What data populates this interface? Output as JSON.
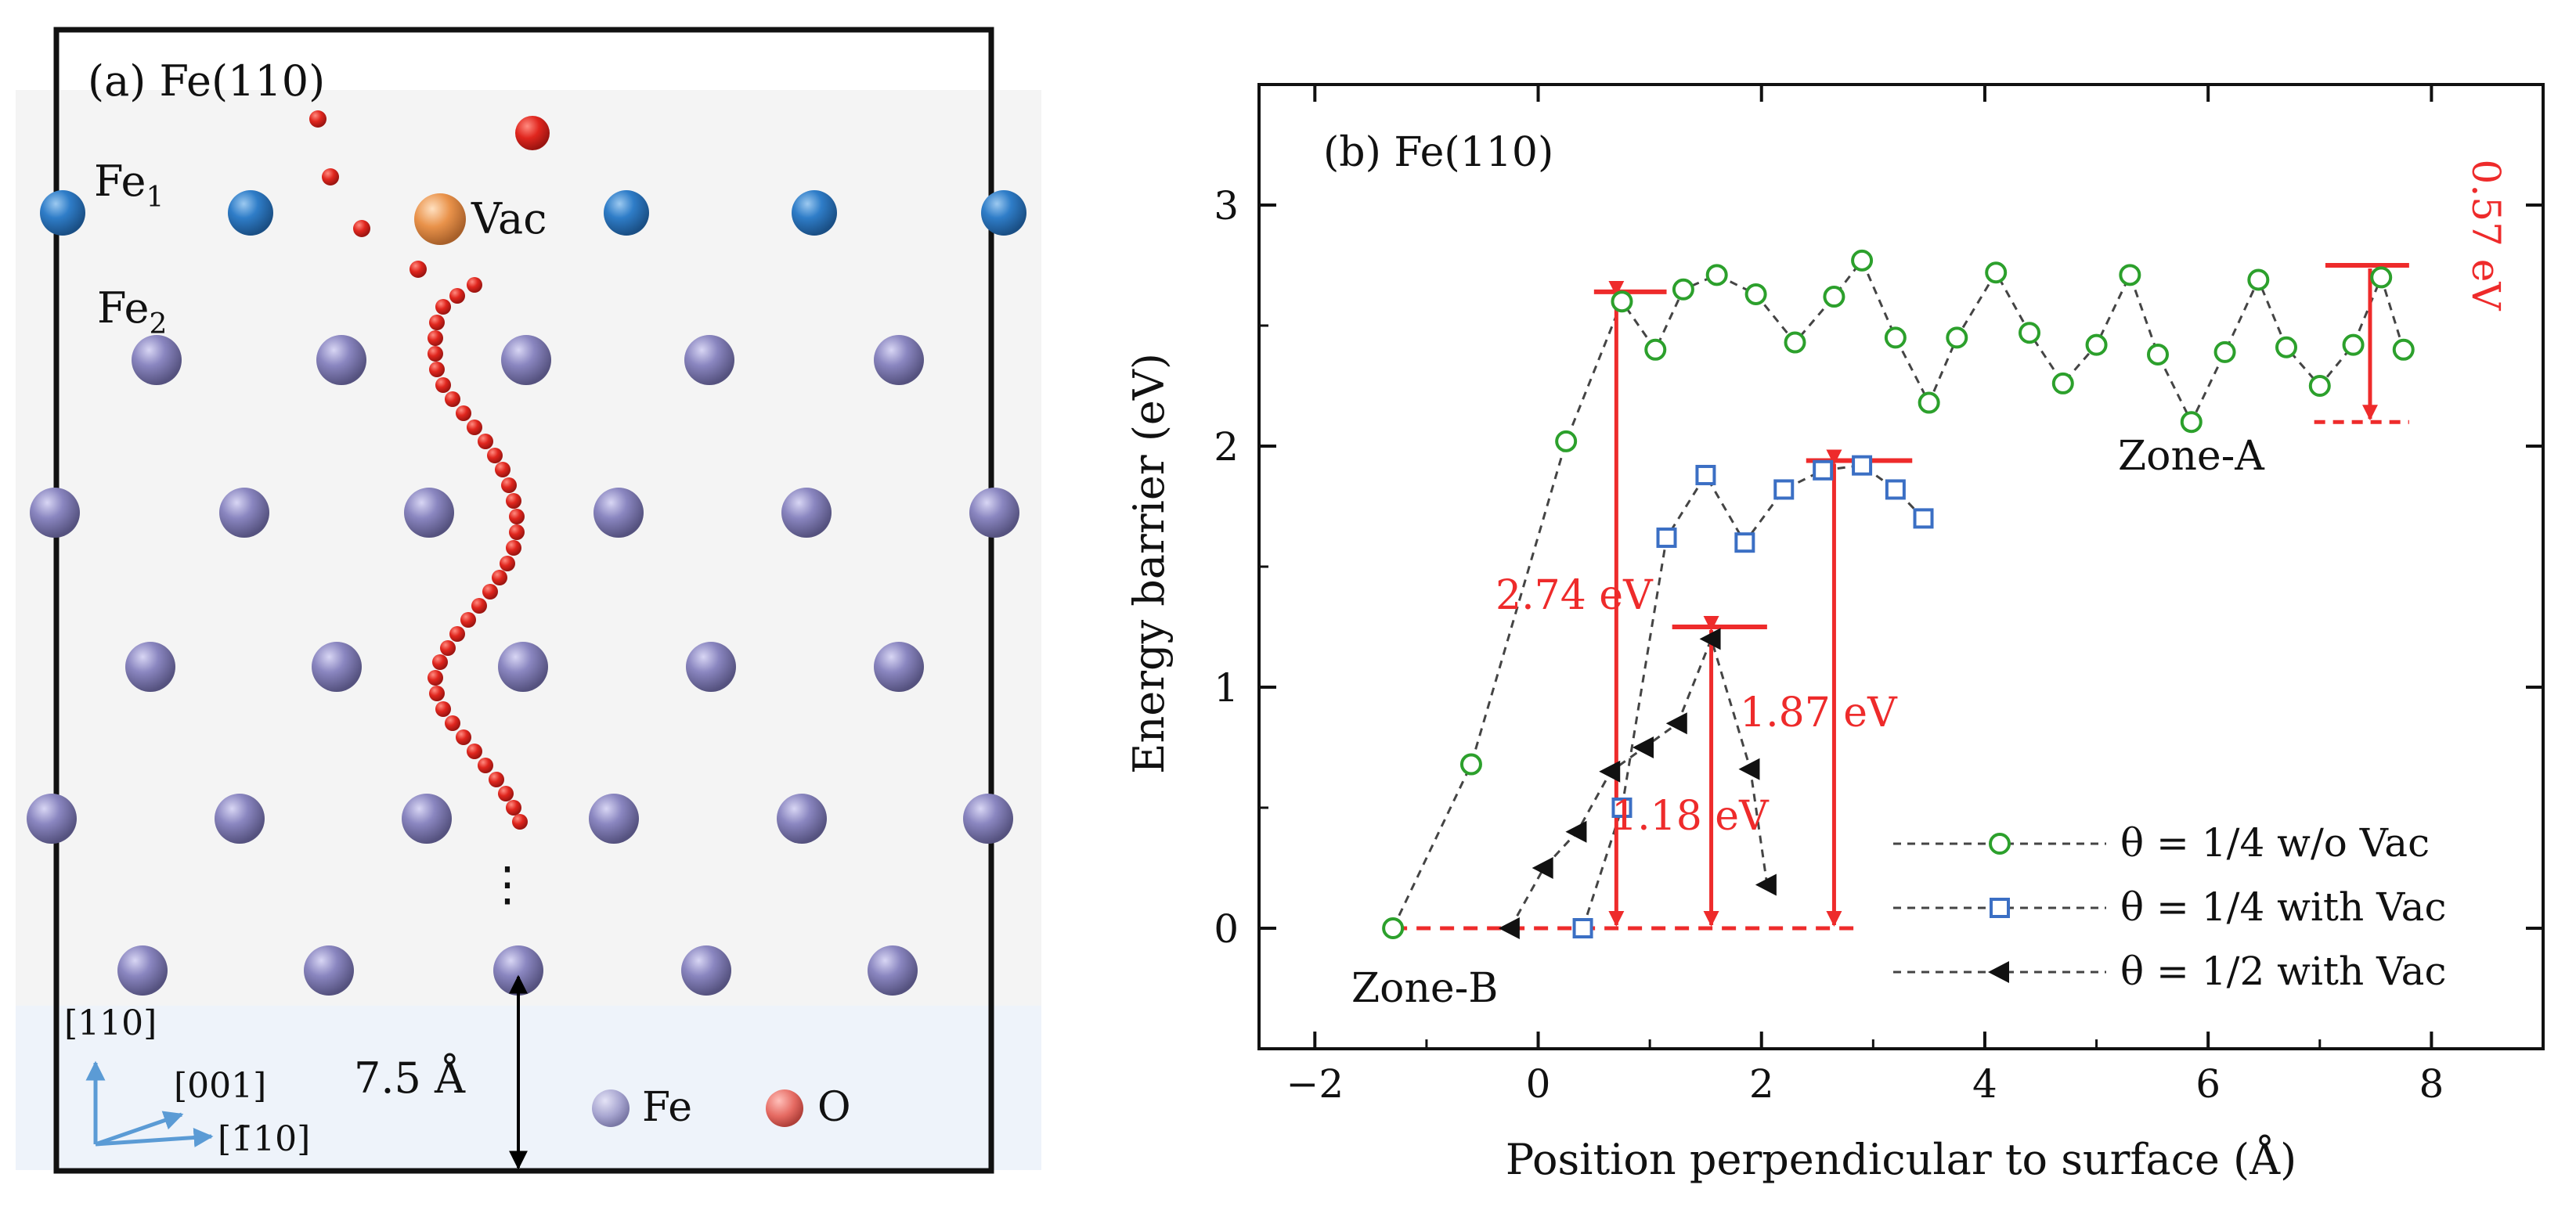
{
  "panel_a": {
    "label": "(a) Fe(110)",
    "fe1_label": "Fe",
    "fe1_sub": "1",
    "fe2_label": "Fe",
    "fe2_sub": "2",
    "vac_label": "Vac",
    "dots": "⋮",
    "distance_label": "7.5 Å",
    "axis_110": "[110]",
    "axis_001": "[001]",
    "axis_m110": "[1̄10]",
    "legend_fe": "Fe",
    "legend_o": "O",
    "colors": {
      "fe_bulk": "#7f7cb4",
      "fe_surface": "#2f7dc8",
      "oxygen": "#e0261e",
      "vacancy": "#e9924a",
      "axis_arrow": "#5b9bd5"
    }
  },
  "chart_data": {
    "type": "scatter",
    "panel_label": "(b) Fe(110)",
    "xlabel": "Position perpendicular to surface (Å)",
    "ylabel": "Energy barrier (eV)",
    "xlim": [
      -2.5,
      9
    ],
    "ylim": [
      -0.5,
      3.5
    ],
    "xticks": [
      -2,
      0,
      2,
      4,
      6,
      8
    ],
    "yticks": [
      0,
      1,
      2,
      3
    ],
    "xtick_labels": [
      "−2",
      "0",
      "2",
      "4",
      "6",
      "8"
    ],
    "ytick_labels": [
      "0",
      "1",
      "2",
      "3"
    ],
    "series": [
      {
        "name": "θ = 1/4 w/o Vac",
        "marker": "circle",
        "color": "#2ca02c",
        "x": [
          -1.3,
          -0.6,
          0.25,
          0.75,
          1.05,
          1.3,
          1.6,
          1.95,
          2.3,
          2.65,
          2.9,
          3.2,
          3.5,
          3.75,
          4.1,
          4.4,
          4.7,
          5.0,
          5.3,
          5.55,
          5.85,
          6.15,
          6.45,
          6.7,
          7.0,
          7.3,
          7.55,
          7.75
        ],
        "y": [
          0.0,
          0.68,
          2.02,
          2.6,
          2.4,
          2.65,
          2.71,
          2.63,
          2.43,
          2.62,
          2.77,
          2.45,
          2.18,
          2.45,
          2.72,
          2.47,
          2.26,
          2.42,
          2.71,
          2.38,
          2.1,
          2.39,
          2.69,
          2.41,
          2.25,
          2.42,
          2.7,
          2.4
        ]
      },
      {
        "name": "θ = 1/4 with Vac",
        "marker": "square",
        "color": "#3b6fc4",
        "x": [
          0.4,
          0.75,
          1.15,
          1.5,
          1.85,
          2.2,
          2.55,
          2.9,
          3.2,
          3.45
        ],
        "y": [
          0.0,
          0.5,
          1.62,
          1.88,
          1.6,
          1.82,
          1.9,
          1.92,
          1.82,
          1.7
        ]
      },
      {
        "name": "θ = 1/2 with Vac",
        "marker": "left-triangle",
        "color": "#111111",
        "x": [
          -0.25,
          0.05,
          0.35,
          0.65,
          0.95,
          1.25,
          1.55,
          1.9,
          2.05
        ],
        "y": [
          0.0,
          0.25,
          0.4,
          0.65,
          0.75,
          0.85,
          1.2,
          0.66,
          0.18
        ]
      }
    ],
    "annotations": [
      {
        "text": "2.74 eV",
        "value": 2.74
      },
      {
        "text": "1.87 eV",
        "value": 1.87
      },
      {
        "text": "1.18 eV",
        "value": 1.18
      },
      {
        "text": "0.57 eV",
        "value": 0.57
      },
      {
        "text": "Zone-A"
      },
      {
        "text": "Zone-B"
      }
    ],
    "legend": {
      "placement": "bottom-right",
      "entries": [
        "θ = 1/4 w/o Vac",
        "θ = 1/4 with Vac",
        "θ = 1/2 with Vac"
      ]
    },
    "annotation_color": "#ee2b2b"
  }
}
